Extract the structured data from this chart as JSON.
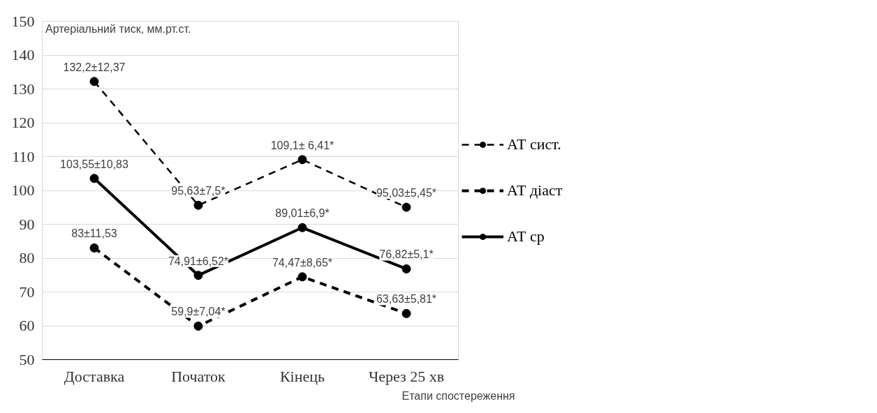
{
  "chart_data": {
    "type": "line",
    "xlabel": "Етапи спостереження",
    "ylabel": "Артеріальний тиск, мм.рт.ст.",
    "categories": [
      "Доставка",
      "Початок",
      "Кінець",
      "Через 25 хв"
    ],
    "series": [
      {
        "name": "АТ сист.",
        "color": "#000000",
        "line_style": "dashed",
        "values": [
          132.2,
          95.63,
          109.1,
          95.03
        ],
        "value_labels": [
          "132,2±12,37",
          "95,63±7,5*",
          "109,1± 6,41*",
          "95,03±5,45*"
        ]
      },
      {
        "name": "АТ діаст",
        "color": "#000000",
        "line_style": "dashed",
        "values": [
          83,
          59.9,
          74.47,
          63.63
        ],
        "value_labels": [
          "83±11,53",
          "59,9±7,04*",
          "74,47±8,65*",
          "63,63±5,81*"
        ]
      },
      {
        "name": "АТ ср",
        "color": "#000000",
        "line_style": "solid",
        "values": [
          103.55,
          74.91,
          89.01,
          76.82
        ],
        "value_labels": [
          "103,55±10,83",
          "74,91±6,52*",
          "89,01±6,9*",
          "76,82±5,1*"
        ]
      }
    ],
    "ylim": [
      50,
      150
    ],
    "yticks": [
      50,
      60,
      70,
      80,
      90,
      100,
      110,
      120,
      130,
      140,
      150
    ],
    "grid": "y",
    "legend": "right",
    "marker": "circle"
  }
}
